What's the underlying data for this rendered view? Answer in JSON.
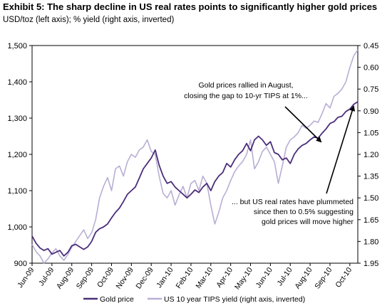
{
  "chart_data": {
    "type": "line",
    "title": "Exhibit 5: The sharp decline in US real rates points to significantly higher gold prices",
    "subtitle": "USD/toz (left axis); % yield (right axis, inverted)",
    "x_tick_labels": [
      "Jun-09",
      "Jul-09",
      "Aug-09",
      "Sep-09",
      "Oct-09",
      "Nov-09",
      "Dec-09",
      "Jan-10",
      "Feb-10",
      "Mar-10",
      "Apr-10",
      "May-10",
      "Jun-10",
      "Jul-10",
      "Aug-10",
      "Sep-10",
      "Oct-10"
    ],
    "y_left": {
      "ylim": [
        900,
        1500
      ],
      "ticks": [
        "900",
        "1,000",
        "1,100",
        "1,200",
        "1,300",
        "1,400",
        "1,500"
      ]
    },
    "y_right": {
      "ylim": [
        0.45,
        1.95
      ],
      "inverted": true,
      "ticks": [
        "0.45",
        "0.60",
        "0.75",
        "0.90",
        "1.05",
        "1.20",
        "1.35",
        "1.50",
        "1.65",
        "1.80",
        "1.95"
      ]
    },
    "grid": false,
    "legend_position": "bottom",
    "series": [
      {
        "name": "Gold price",
        "axis": "left",
        "color": "#4b2e7a",
        "x": [
          0,
          0.2,
          0.4,
          0.6,
          0.8,
          1.0,
          1.2,
          1.4,
          1.6,
          1.8,
          2.0,
          2.2,
          2.4,
          2.6,
          2.8,
          3.0,
          3.2,
          3.4,
          3.6,
          3.8,
          4.0,
          4.2,
          4.4,
          4.6,
          4.8,
          5.0,
          5.2,
          5.4,
          5.6,
          5.8,
          6.0,
          6.2,
          6.4,
          6.6,
          6.8,
          7.0,
          7.2,
          7.4,
          7.6,
          7.8,
          8.0,
          8.2,
          8.4,
          8.6,
          8.8,
          9.0,
          9.2,
          9.4,
          9.6,
          9.8,
          10.0,
          10.2,
          10.4,
          10.6,
          10.8,
          11.0,
          11.2,
          11.4,
          11.6,
          11.8,
          12.0,
          12.2,
          12.4,
          12.6,
          12.8,
          13.0,
          13.2,
          13.4,
          13.6,
          13.8,
          14.0,
          14.2,
          14.4,
          14.6,
          14.8,
          15.0,
          15.2,
          15.4,
          15.6,
          15.8,
          16.0,
          16.2,
          16.4
        ],
        "values": [
          975,
          955,
          942,
          935,
          940,
          925,
          930,
          935,
          920,
          930,
          948,
          952,
          945,
          938,
          945,
          960,
          985,
          995,
          1000,
          1008,
          1025,
          1040,
          1052,
          1070,
          1090,
          1100,
          1110,
          1135,
          1160,
          1175,
          1190,
          1212,
          1170,
          1140,
          1120,
          1125,
          1110,
          1100,
          1090,
          1080,
          1090,
          1102,
          1095,
          1110,
          1120,
          1100,
          1125,
          1140,
          1150,
          1175,
          1165,
          1185,
          1200,
          1210,
          1230,
          1210,
          1240,
          1250,
          1240,
          1225,
          1235,
          1205,
          1200,
          1185,
          1190,
          1175,
          1200,
          1215,
          1225,
          1230,
          1240,
          1248,
          1245,
          1258,
          1270,
          1285,
          1290,
          1302,
          1305,
          1318,
          1325,
          1338,
          1345
        ]
      },
      {
        "name": "US 10 year TIPS yield (right axis, inverted)",
        "axis": "right",
        "color": "#b9aed4",
        "x": [
          0,
          0.2,
          0.4,
          0.6,
          0.8,
          1.0,
          1.2,
          1.4,
          1.6,
          1.8,
          2.0,
          2.2,
          2.4,
          2.6,
          2.8,
          3.0,
          3.2,
          3.4,
          3.6,
          3.8,
          4.0,
          4.2,
          4.4,
          4.6,
          4.8,
          5.0,
          5.2,
          5.4,
          5.6,
          5.8,
          6.0,
          6.2,
          6.4,
          6.6,
          6.8,
          7.0,
          7.2,
          7.4,
          7.6,
          7.8,
          8.0,
          8.2,
          8.4,
          8.6,
          8.8,
          9.0,
          9.2,
          9.4,
          9.6,
          9.8,
          10.0,
          10.2,
          10.4,
          10.6,
          10.8,
          11.0,
          11.2,
          11.4,
          11.6,
          11.8,
          12.0,
          12.2,
          12.4,
          12.6,
          12.8,
          13.0,
          13.2,
          13.4,
          13.6,
          13.8,
          14.0,
          14.2,
          14.4,
          14.6,
          14.8,
          15.0,
          15.2,
          15.4,
          15.6,
          15.8,
          16.0,
          16.2,
          16.4
        ],
        "values": [
          1.82,
          1.87,
          1.9,
          1.95,
          1.92,
          1.88,
          1.85,
          1.9,
          1.93,
          1.89,
          1.84,
          1.8,
          1.76,
          1.72,
          1.78,
          1.74,
          1.65,
          1.5,
          1.42,
          1.36,
          1.45,
          1.3,
          1.28,
          1.35,
          1.25,
          1.2,
          1.22,
          1.17,
          1.15,
          1.1,
          1.18,
          1.2,
          1.35,
          1.47,
          1.5,
          1.45,
          1.55,
          1.48,
          1.42,
          1.5,
          1.4,
          1.38,
          1.45,
          1.35,
          1.4,
          1.55,
          1.68,
          1.6,
          1.5,
          1.45,
          1.38,
          1.32,
          1.28,
          1.25,
          1.2,
          1.1,
          1.3,
          1.25,
          1.18,
          1.15,
          1.2,
          1.25,
          1.4,
          1.28,
          1.15,
          1.1,
          1.08,
          1.05,
          1.0,
          1.02,
          1.0,
          0.97,
          0.98,
          0.92,
          0.85,
          0.88,
          0.8,
          0.78,
          0.75,
          0.7,
          0.6,
          0.52,
          0.48
        ]
      }
    ],
    "annotations": [
      {
        "lines": [
          "Gold prices rallied in August,",
          "closing the gap to 10-yr TIPS at 1%..."
        ]
      },
      {
        "lines": [
          "... but US real rates have plummeted",
          "since then to 0.5% suggesting",
          "gold prices will move higher"
        ]
      }
    ]
  }
}
